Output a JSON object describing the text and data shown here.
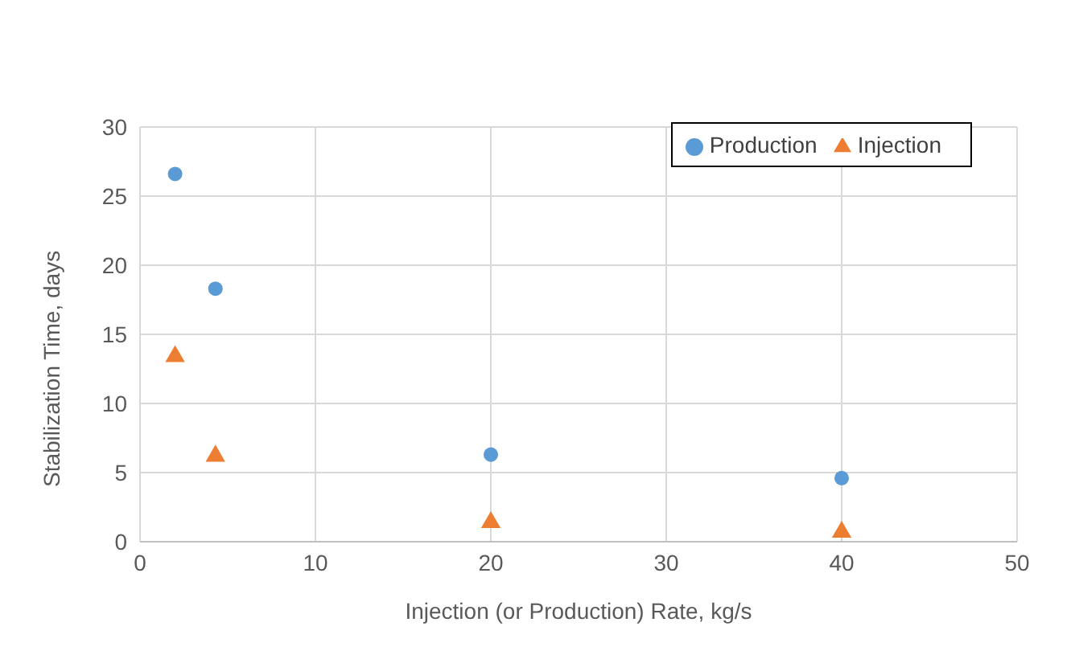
{
  "chart_data": {
    "type": "scatter",
    "xlabel": "Injection (or Production) Rate, kg/s",
    "ylabel": "Stabilization Time, days",
    "x": [
      2,
      4.3,
      20,
      40
    ],
    "series": [
      {
        "name": "Production",
        "color": "#5b9bd5",
        "marker": "circle",
        "values": [
          26.6,
          18.3,
          6.3,
          4.6
        ]
      },
      {
        "name": "Injection",
        "color": "#ed7d31",
        "marker": "triangle",
        "values": [
          13.4,
          6.2,
          1.4,
          0.7
        ]
      }
    ],
    "xlim": [
      0,
      50
    ],
    "xticks": [
      0,
      10,
      20,
      30,
      40,
      50
    ],
    "ylim": [
      0,
      30
    ],
    "yticks": [
      0,
      5,
      10,
      15,
      20,
      25,
      30
    ],
    "grid": true,
    "legend": "top right"
  }
}
